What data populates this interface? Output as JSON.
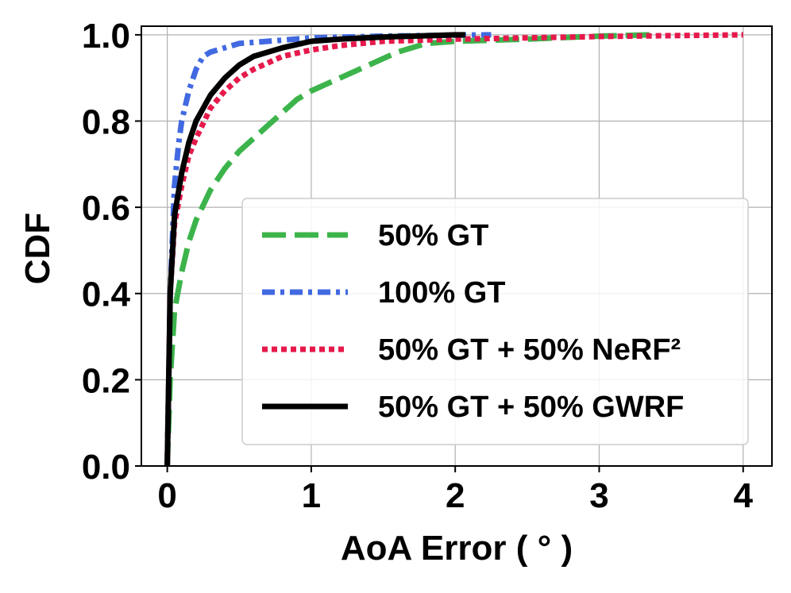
{
  "chart_data": {
    "type": "line",
    "xlabel": "AoA Error ( ° )",
    "ylabel": "CDF",
    "xlim": [
      -0.18,
      4.2
    ],
    "ylim": [
      0,
      1.02
    ],
    "xticks": [
      0,
      1,
      2,
      3,
      4
    ],
    "xtick_labels": [
      "0",
      "1",
      "2",
      "3",
      "4"
    ],
    "yticks": [
      0,
      0.2,
      0.4,
      0.6,
      0.8,
      1.0
    ],
    "ytick_labels": [
      "0.0",
      "0.2",
      "0.4",
      "0.6",
      "0.8",
      "1.0"
    ],
    "grid": true,
    "legend_position": "lower-right",
    "series": [
      {
        "name": "50% GT",
        "color": "#3cb44b",
        "style": "dashed",
        "x": [
          0,
          0.02,
          0.05,
          0.1,
          0.15,
          0.2,
          0.3,
          0.4,
          0.5,
          0.6,
          0.7,
          0.8,
          0.9,
          1.0,
          1.2,
          1.4,
          1.6,
          1.8,
          2.0,
          2.5,
          3.0,
          3.35
        ],
        "y": [
          0,
          0.2,
          0.36,
          0.45,
          0.52,
          0.57,
          0.64,
          0.69,
          0.73,
          0.76,
          0.79,
          0.82,
          0.85,
          0.87,
          0.9,
          0.93,
          0.96,
          0.98,
          0.985,
          0.99,
          0.997,
          1.0
        ]
      },
      {
        "name": "100% GT",
        "color": "#4169e1",
        "style": "dashdot",
        "x": [
          0,
          0.02,
          0.05,
          0.08,
          0.1,
          0.15,
          0.2,
          0.25,
          0.3,
          0.4,
          0.5,
          0.7,
          1.0,
          1.5,
          2.0,
          2.25
        ],
        "y": [
          0,
          0.4,
          0.65,
          0.75,
          0.8,
          0.87,
          0.92,
          0.95,
          0.96,
          0.97,
          0.98,
          0.985,
          0.993,
          0.997,
          0.999,
          1.0
        ]
      },
      {
        "name": "50% GT + 50% NeRF²",
        "color": "#e6194b",
        "style": "dotted",
        "x": [
          0,
          0.02,
          0.05,
          0.1,
          0.15,
          0.2,
          0.3,
          0.4,
          0.5,
          0.6,
          0.8,
          1.0,
          1.2,
          1.5,
          2.0,
          2.5,
          3.0,
          3.5,
          4.0
        ],
        "y": [
          0,
          0.4,
          0.56,
          0.65,
          0.72,
          0.76,
          0.83,
          0.87,
          0.9,
          0.92,
          0.95,
          0.965,
          0.975,
          0.985,
          0.99,
          0.993,
          0.996,
          0.998,
          1.0
        ]
      },
      {
        "name": "50% GT + 50% GWRF",
        "color": "#000000",
        "style": "solid",
        "x": [
          0,
          0.02,
          0.05,
          0.1,
          0.15,
          0.2,
          0.3,
          0.4,
          0.5,
          0.6,
          0.8,
          1.0,
          1.2,
          1.5,
          2.0,
          2.07
        ],
        "y": [
          0,
          0.4,
          0.58,
          0.68,
          0.75,
          0.8,
          0.86,
          0.9,
          0.93,
          0.95,
          0.97,
          0.985,
          0.99,
          0.995,
          1.0,
          1.0
        ]
      }
    ]
  }
}
